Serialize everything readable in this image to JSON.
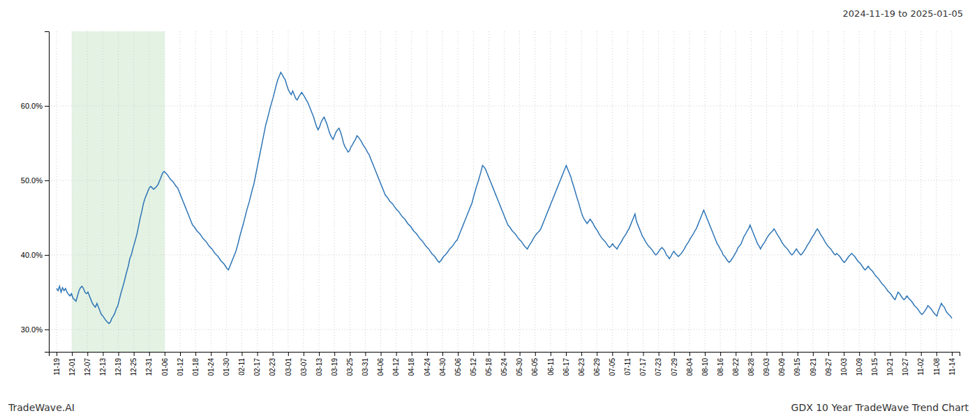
{
  "chart_data": {
    "type": "line",
    "title": "2024-11-19 to 2025-01-05",
    "annotations": [
      "TradeWave.AI",
      "GDX 10 Year TradeWave Trend Chart"
    ],
    "color": "#2E75B6",
    "grid": true,
    "shade": {
      "start": "12-01",
      "end": "01-06",
      "color": "#c8e6c8"
    },
    "xlim": [
      -5.164,
      604.164
    ],
    "xticks": [
      {
        "value": 0,
        "label": "11-19"
      },
      {
        "value": 10.328,
        "label": "12-01"
      },
      {
        "value": 20.655,
        "label": "12-07"
      },
      {
        "value": 30.983,
        "label": "12-13"
      },
      {
        "value": 41.31,
        "label": "12-19"
      },
      {
        "value": 51.638,
        "label": "12-25"
      },
      {
        "value": 61.966,
        "label": "12-31"
      },
      {
        "value": 72.293,
        "label": "01-06"
      },
      {
        "value": 82.621,
        "label": "01-12"
      },
      {
        "value": 92.948,
        "label": "01-18"
      },
      {
        "value": 103.276,
        "label": "01-24"
      },
      {
        "value": 113.603,
        "label": "01-30"
      },
      {
        "value": 123.931,
        "label": "02-11"
      },
      {
        "value": 134.259,
        "label": "02-17"
      },
      {
        "value": 144.586,
        "label": "02-23"
      },
      {
        "value": 154.914,
        "label": "03-01"
      },
      {
        "value": 165.241,
        "label": "03-07"
      },
      {
        "value": 175.569,
        "label": "03-13"
      },
      {
        "value": 185.897,
        "label": "03-19"
      },
      {
        "value": 196.224,
        "label": "03-25"
      },
      {
        "value": 206.552,
        "label": "03-31"
      },
      {
        "value": 216.879,
        "label": "04-06"
      },
      {
        "value": 227.207,
        "label": "04-12"
      },
      {
        "value": 237.534,
        "label": "04-18"
      },
      {
        "value": 247.862,
        "label": "04-24"
      },
      {
        "value": 258.19,
        "label": "04-30"
      },
      {
        "value": 268.517,
        "label": "05-06"
      },
      {
        "value": 278.845,
        "label": "05-12"
      },
      {
        "value": 289.172,
        "label": "05-18"
      },
      {
        "value": 299.5,
        "label": "05-24"
      },
      {
        "value": 309.828,
        "label": "05-30"
      },
      {
        "value": 320.155,
        "label": "06-05"
      },
      {
        "value": 330.483,
        "label": "06-11"
      },
      {
        "value": 340.81,
        "label": "06-17"
      },
      {
        "value": 351.138,
        "label": "06-23"
      },
      {
        "value": 361.466,
        "label": "06-29"
      },
      {
        "value": 371.793,
        "label": "07-05"
      },
      {
        "value": 382.121,
        "label": "07-11"
      },
      {
        "value": 392.448,
        "label": "07-17"
      },
      {
        "value": 402.776,
        "label": "07-23"
      },
      {
        "value": 413.103,
        "label": "07-29"
      },
      {
        "value": 423.431,
        "label": "08-04"
      },
      {
        "value": 433.759,
        "label": "08-10"
      },
      {
        "value": 444.086,
        "label": "08-16"
      },
      {
        "value": 454.414,
        "label": "08-22"
      },
      {
        "value": 464.741,
        "label": "08-28"
      },
      {
        "value": 475.069,
        "label": "09-03"
      },
      {
        "value": 485.397,
        "label": "09-09"
      },
      {
        "value": 495.724,
        "label": "09-15"
      },
      {
        "value": 506.052,
        "label": "09-21"
      },
      {
        "value": 516.379,
        "label": "09-27"
      },
      {
        "value": 526.707,
        "label": "10-03"
      },
      {
        "value": 537.034,
        "label": "10-09"
      },
      {
        "value": 547.362,
        "label": "10-15"
      },
      {
        "value": 557.69,
        "label": "10-21"
      },
      {
        "value": 568.017,
        "label": "10-27"
      },
      {
        "value": 578.345,
        "label": "11-02"
      },
      {
        "value": 588.672,
        "label": "11-08"
      },
      {
        "value": 599,
        "label": "11-14"
      }
    ],
    "ylim": [
      0.27,
      0.7
    ],
    "yticks": [
      {
        "value": 0.3,
        "label": "30.0%"
      },
      {
        "value": 0.4,
        "label": "40.0%"
      },
      {
        "value": 0.5,
        "label": "50.0%"
      },
      {
        "value": 0.6,
        "label": "60.0%"
      }
    ],
    "x": [
      0,
      1,
      2,
      3,
      4,
      5,
      6,
      7,
      8,
      9,
      10,
      11,
      12,
      13,
      14,
      15,
      16,
      17,
      18,
      19,
      20,
      21,
      22,
      23,
      24,
      25,
      26,
      27,
      28,
      29,
      30,
      31,
      32,
      33,
      34,
      35,
      36,
      37,
      38,
      39,
      40,
      41,
      42,
      43,
      44,
      45,
      46,
      47,
      48,
      49,
      50,
      51,
      52,
      53,
      54,
      55,
      56,
      57,
      58,
      59,
      60,
      61,
      62,
      63,
      64,
      65,
      66,
      67,
      68,
      69,
      70,
      71,
      72,
      73,
      74,
      75,
      76,
      77,
      78,
      79,
      80,
      81,
      82,
      83,
      84,
      85,
      86,
      87,
      88,
      89,
      90,
      91,
      92,
      93,
      94,
      95,
      96,
      97,
      98,
      99,
      100,
      101,
      102,
      103,
      104,
      105,
      106,
      107,
      108,
      109,
      110,
      111,
      112,
      113,
      114,
      115,
      116,
      117,
      118,
      119,
      120,
      121,
      122,
      123,
      124,
      125,
      126,
      127,
      128,
      129,
      130,
      131,
      132,
      133,
      134,
      135,
      136,
      137,
      138,
      139,
      140,
      141,
      142,
      143,
      144,
      145,
      146,
      147,
      148,
      149,
      150,
      151,
      152,
      153,
      154,
      155,
      156,
      157,
      158,
      159,
      160,
      161,
      162,
      163,
      164,
      165,
      166,
      167,
      168,
      169,
      170,
      171,
      172,
      173,
      174,
      175,
      176,
      177,
      178,
      179,
      180,
      181,
      182,
      183,
      184,
      185,
      186,
      187,
      188,
      189,
      190,
      191,
      192,
      193,
      194,
      195,
      196,
      197,
      198,
      199,
      200,
      201,
      202,
      203,
      204,
      205,
      206,
      207,
      208,
      209,
      210,
      211,
      212,
      213,
      214,
      215,
      216,
      217,
      218,
      219,
      220,
      221,
      222,
      223,
      224,
      225,
      226,
      227,
      228,
      229,
      230,
      231,
      232,
      233,
      234,
      235,
      236,
      237,
      238,
      239,
      240,
      241,
      242,
      243,
      244,
      245,
      246,
      247,
      248,
      249,
      250,
      251,
      252,
      253,
      254,
      255,
      256,
      257,
      258,
      259,
      260,
      261,
      262,
      263,
      264,
      265,
      266,
      267,
      268,
      269,
      270,
      271,
      272,
      273,
      274,
      275,
      276,
      277,
      278,
      279,
      280,
      281,
      282,
      283,
      284,
      285,
      286,
      287,
      288,
      289,
      290,
      291,
      292,
      293,
      294,
      295,
      296,
      297,
      298,
      299,
      300,
      301,
      302,
      303,
      304,
      305,
      306,
      307,
      308,
      309,
      310,
      311,
      312,
      313,
      314,
      315,
      316,
      317,
      318,
      319,
      320,
      321,
      322,
      323,
      324,
      325,
      326,
      327,
      328,
      329,
      330,
      331,
      332,
      333,
      334,
      335,
      336,
      337,
      338,
      339,
      340,
      341,
      342,
      343,
      344,
      345,
      346,
      347,
      348,
      349,
      350,
      351,
      352,
      353,
      354,
      355,
      356,
      357,
      358,
      359,
      360,
      361,
      362,
      363,
      364,
      365,
      366,
      367,
      368,
      369,
      370,
      371,
      372,
      373,
      374,
      375,
      376,
      377,
      378,
      379,
      380,
      381,
      382,
      383,
      384,
      385,
      386,
      387,
      388,
      389,
      390,
      391,
      392,
      393,
      394,
      395,
      396,
      397,
      398,
      399,
      400,
      401,
      402,
      403,
      404,
      405,
      406,
      407,
      408,
      409,
      410,
      411,
      412,
      413,
      414,
      415,
      416,
      417,
      418,
      419,
      420,
      421,
      422,
      423,
      424,
      425,
      426,
      427,
      428,
      429,
      430,
      431,
      432,
      433,
      434,
      435,
      436,
      437,
      438,
      439,
      440,
      441,
      442,
      443,
      444,
      445,
      446,
      447,
      448,
      449,
      450,
      451,
      452,
      453,
      454,
      455,
      456,
      457,
      458,
      459,
      460,
      461,
      462,
      463,
      464,
      465,
      466,
      467,
      468,
      469,
      470,
      471,
      472,
      473,
      474,
      475,
      476,
      477,
      478,
      479,
      480,
      481,
      482,
      483,
      484,
      485,
      486,
      487,
      488,
      489,
      490,
      491,
      492,
      493,
      494,
      495,
      496,
      497,
      498,
      499,
      500,
      501,
      502,
      503,
      504,
      505,
      506,
      507,
      508,
      509,
      510,
      511,
      512,
      513,
      514,
      515,
      516,
      517,
      518,
      519,
      520,
      521,
      522,
      523,
      524,
      525,
      526,
      527,
      528,
      529,
      530,
      531,
      532,
      533,
      534,
      535,
      536,
      537,
      538,
      539,
      540,
      541,
      542,
      543,
      544,
      545,
      546,
      547,
      548,
      549,
      550,
      551,
      552,
      553,
      554,
      555,
      556,
      557,
      558,
      559,
      560,
      561,
      562,
      563,
      564,
      565,
      566,
      567,
      568,
      569,
      570,
      571,
      572,
      573,
      574,
      575,
      576,
      577,
      578,
      579,
      580,
      581,
      582,
      583,
      584,
      585,
      586,
      587,
      588,
      589,
      590,
      591,
      592,
      593,
      594,
      595,
      596,
      597,
      598,
      599
    ],
    "values": [
      0.355,
      0.352,
      0.358,
      0.35,
      0.356,
      0.352,
      0.355,
      0.35,
      0.347,
      0.345,
      0.348,
      0.342,
      0.34,
      0.338,
      0.345,
      0.352,
      0.356,
      0.358,
      0.355,
      0.35,
      0.348,
      0.35,
      0.345,
      0.34,
      0.335,
      0.332,
      0.33,
      0.335,
      0.33,
      0.325,
      0.32,
      0.318,
      0.315,
      0.312,
      0.31,
      0.308,
      0.31,
      0.315,
      0.318,
      0.322,
      0.328,
      0.332,
      0.34,
      0.348,
      0.355,
      0.362,
      0.37,
      0.378,
      0.385,
      0.395,
      0.4,
      0.408,
      0.415,
      0.422,
      0.43,
      0.44,
      0.45,
      0.458,
      0.468,
      0.475,
      0.48,
      0.485,
      0.49,
      0.492,
      0.49,
      0.488,
      0.49,
      0.492,
      0.495,
      0.5,
      0.505,
      0.51,
      0.512,
      0.51,
      0.508,
      0.505,
      0.502,
      0.5,
      0.498,
      0.495,
      0.492,
      0.49,
      0.485,
      0.48,
      0.475,
      0.47,
      0.465,
      0.46,
      0.455,
      0.45,
      0.445,
      0.44,
      0.438,
      0.435,
      0.432,
      0.43,
      0.428,
      0.425,
      0.422,
      0.42,
      0.418,
      0.415,
      0.412,
      0.41,
      0.408,
      0.405,
      0.402,
      0.4,
      0.398,
      0.395,
      0.392,
      0.39,
      0.388,
      0.385,
      0.382,
      0.38,
      0.385,
      0.39,
      0.395,
      0.4,
      0.405,
      0.412,
      0.42,
      0.428,
      0.435,
      0.442,
      0.45,
      0.458,
      0.465,
      0.472,
      0.48,
      0.488,
      0.495,
      0.505,
      0.515,
      0.525,
      0.535,
      0.545,
      0.555,
      0.565,
      0.575,
      0.582,
      0.59,
      0.598,
      0.605,
      0.612,
      0.62,
      0.628,
      0.635,
      0.64,
      0.645,
      0.642,
      0.638,
      0.635,
      0.628,
      0.622,
      0.618,
      0.615,
      0.62,
      0.615,
      0.61,
      0.608,
      0.612,
      0.615,
      0.618,
      0.615,
      0.612,
      0.608,
      0.605,
      0.6,
      0.595,
      0.59,
      0.585,
      0.578,
      0.572,
      0.568,
      0.572,
      0.578,
      0.582,
      0.585,
      0.58,
      0.575,
      0.568,
      0.562,
      0.558,
      0.555,
      0.56,
      0.565,
      0.568,
      0.57,
      0.565,
      0.558,
      0.55,
      0.545,
      0.542,
      0.538,
      0.54,
      0.545,
      0.548,
      0.552,
      0.555,
      0.56,
      0.558,
      0.555,
      0.552,
      0.548,
      0.545,
      0.542,
      0.538,
      0.535,
      0.53,
      0.525,
      0.52,
      0.515,
      0.51,
      0.505,
      0.5,
      0.495,
      0.49,
      0.485,
      0.48,
      0.478,
      0.475,
      0.472,
      0.47,
      0.468,
      0.465,
      0.462,
      0.46,
      0.458,
      0.455,
      0.452,
      0.45,
      0.448,
      0.445,
      0.442,
      0.44,
      0.438,
      0.435,
      0.432,
      0.43,
      0.428,
      0.425,
      0.422,
      0.42,
      0.418,
      0.415,
      0.412,
      0.41,
      0.408,
      0.405,
      0.402,
      0.4,
      0.398,
      0.395,
      0.392,
      0.39,
      0.392,
      0.395,
      0.398,
      0.4,
      0.402,
      0.405,
      0.408,
      0.41,
      0.412,
      0.415,
      0.418,
      0.42,
      0.425,
      0.43,
      0.435,
      0.44,
      0.445,
      0.45,
      0.455,
      0.46,
      0.465,
      0.47,
      0.478,
      0.485,
      0.492,
      0.498,
      0.505,
      0.512,
      0.52,
      0.518,
      0.515,
      0.51,
      0.505,
      0.5,
      0.495,
      0.49,
      0.485,
      0.48,
      0.475,
      0.47,
      0.465,
      0.46,
      0.455,
      0.45,
      0.445,
      0.44,
      0.438,
      0.435,
      0.432,
      0.43,
      0.428,
      0.425,
      0.422,
      0.42,
      0.418,
      0.415,
      0.412,
      0.41,
      0.408,
      0.412,
      0.415,
      0.418,
      0.422,
      0.425,
      0.428,
      0.43,
      0.432,
      0.435,
      0.44,
      0.445,
      0.45,
      0.455,
      0.46,
      0.465,
      0.47,
      0.475,
      0.48,
      0.485,
      0.49,
      0.495,
      0.5,
      0.505,
      0.51,
      0.515,
      0.52,
      0.515,
      0.51,
      0.505,
      0.498,
      0.492,
      0.485,
      0.478,
      0.472,
      0.465,
      0.458,
      0.452,
      0.448,
      0.445,
      0.442,
      0.445,
      0.448,
      0.445,
      0.442,
      0.438,
      0.435,
      0.432,
      0.428,
      0.425,
      0.422,
      0.42,
      0.418,
      0.415,
      0.412,
      0.41,
      0.412,
      0.415,
      0.412,
      0.41,
      0.408,
      0.412,
      0.415,
      0.418,
      0.422,
      0.425,
      0.428,
      0.432,
      0.435,
      0.44,
      0.445,
      0.45,
      0.455,
      0.445,
      0.44,
      0.435,
      0.43,
      0.425,
      0.422,
      0.418,
      0.415,
      0.412,
      0.41,
      0.408,
      0.405,
      0.402,
      0.4,
      0.402,
      0.405,
      0.408,
      0.41,
      0.408,
      0.405,
      0.4,
      0.398,
      0.395,
      0.398,
      0.402,
      0.405,
      0.402,
      0.4,
      0.398,
      0.4,
      0.402,
      0.405,
      0.408,
      0.412,
      0.415,
      0.418,
      0.422,
      0.425,
      0.428,
      0.432,
      0.435,
      0.44,
      0.445,
      0.45,
      0.455,
      0.46,
      0.455,
      0.45,
      0.445,
      0.44,
      0.435,
      0.43,
      0.425,
      0.42,
      0.415,
      0.412,
      0.408,
      0.405,
      0.4,
      0.398,
      0.395,
      0.392,
      0.39,
      0.392,
      0.395,
      0.398,
      0.402,
      0.405,
      0.41,
      0.412,
      0.415,
      0.42,
      0.425,
      0.428,
      0.432,
      0.435,
      0.44,
      0.435,
      0.43,
      0.425,
      0.42,
      0.415,
      0.412,
      0.408,
      0.412,
      0.415,
      0.418,
      0.422,
      0.425,
      0.428,
      0.43,
      0.432,
      0.435,
      0.432,
      0.428,
      0.425,
      0.422,
      0.418,
      0.415,
      0.412,
      0.41,
      0.408,
      0.405,
      0.402,
      0.4,
      0.402,
      0.405,
      0.408,
      0.405,
      0.402,
      0.4,
      0.402,
      0.405,
      0.408,
      0.412,
      0.415,
      0.418,
      0.422,
      0.425,
      0.428,
      0.432,
      0.435,
      0.432,
      0.428,
      0.425,
      0.422,
      0.418,
      0.415,
      0.412,
      0.41,
      0.408,
      0.405,
      0.402,
      0.4,
      0.402,
      0.4,
      0.398,
      0.395,
      0.392,
      0.39,
      0.392,
      0.395,
      0.398,
      0.4,
      0.402,
      0.4,
      0.398,
      0.395,
      0.392,
      0.39,
      0.388,
      0.385,
      0.382,
      0.38,
      0.382,
      0.385,
      0.382,
      0.38,
      0.378,
      0.375,
      0.372,
      0.37,
      0.368,
      0.365,
      0.362,
      0.36,
      0.358,
      0.355,
      0.352,
      0.35,
      0.348,
      0.345,
      0.342,
      0.34,
      0.345,
      0.35,
      0.348,
      0.345,
      0.342,
      0.34,
      0.342,
      0.345,
      0.342,
      0.34,
      0.338,
      0.335,
      0.332,
      0.33,
      0.328,
      0.325,
      0.322,
      0.32,
      0.322,
      0.325,
      0.328,
      0.332,
      0.33,
      0.328,
      0.325,
      0.322,
      0.32,
      0.318,
      0.325,
      0.33,
      0.335,
      0.332,
      0.33,
      0.325,
      0.322,
      0.32,
      0.318,
      0.315
    ]
  }
}
